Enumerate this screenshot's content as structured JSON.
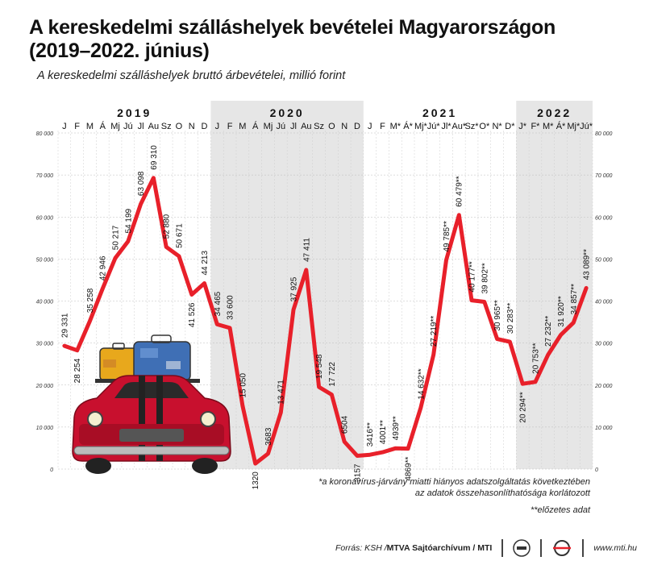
{
  "title": "A kereskedelmi szálláshelyek bevételei Magyarországon (2019–2022. június)",
  "subtitle": "A kereskedelmi szálláshelyek bruttó árbevételei, millió forint",
  "years": [
    "2019",
    "2020",
    "2021",
    "2022"
  ],
  "y_ticks": [
    "0",
    "10 000",
    "20 000",
    "30 000",
    "40 000",
    "50 000",
    "60 000",
    "70 000",
    "80 000"
  ],
  "notes": {
    "note1_line1": "*a koronavírus-járvány miatti hiányos adatszolgáltatás következtében",
    "note1_line2": "az adatok összehasonlíthatósága korlátozott",
    "note2": "**előzetes adat"
  },
  "footer": {
    "source_prefix": "Forrás: KSH / ",
    "source_bold": "MTVA Sajtóarchívum / MTI",
    "website": "www.mti.hu",
    "logo1": "MTVA logo",
    "logo2": "MTI logo"
  },
  "colors": {
    "line": "#e8202a",
    "shade": "#e6e6e6",
    "car": "#c8102e"
  },
  "icons": [
    "car-with-luggage-illustration"
  ],
  "chart_data": {
    "type": "line",
    "title": "A kereskedelmi szálláshelyek bevételei Magyarországon (2019–2022. június)",
    "ylabel": "",
    "ylim": [
      0,
      80000
    ],
    "grid": true,
    "categories": [
      "J",
      "F",
      "M",
      "Á",
      "Mj",
      "Jú",
      "Jl",
      "Au",
      "Sz",
      "O",
      "N",
      "D",
      "J",
      "F",
      "M",
      "Á",
      "Mj",
      "Jú",
      "Jl",
      "Au",
      "Sz",
      "O",
      "N",
      "D",
      "J",
      "F",
      "M*",
      "Á*",
      "Mj*",
      "Jú*",
      "Jl*",
      "Au*",
      "Sz*",
      "O*",
      "N*",
      "D*",
      "J*",
      "F*",
      "M*",
      "Á*",
      "Mj*",
      "Jú*"
    ],
    "values": [
      29331,
      28254,
      35258,
      42946,
      50217,
      54199,
      63098,
      69310,
      52880,
      50671,
      41526,
      44213,
      34465,
      33600,
      15050,
      1320,
      3683,
      13471,
      37925,
      47411,
      19548,
      17722,
      6504,
      3157,
      3416,
      4001,
      4939,
      4869,
      14632,
      27219,
      49785,
      60479,
      40177,
      39802,
      30965,
      30283,
      20294,
      20753,
      27232,
      31920,
      34857,
      43089
    ],
    "labels": [
      "29 331",
      "28 254",
      "35 258",
      "42 946",
      "50 217",
      "54 199",
      "63 098",
      "69 310",
      "52 880",
      "50 671",
      "41 526",
      "44 213",
      "34 465",
      "33 600",
      "15 050",
      "1320",
      "3683",
      "13 471",
      "37 925",
      "47 411",
      "19 548",
      "17 722",
      "6504",
      "3157",
      "3416**",
      "4001**",
      "4939**",
      "4869**",
      "14 632**",
      "27 219**",
      "49 785**",
      "60 479**",
      "40 177**",
      "39 802**",
      "30 965**",
      "30 283**",
      "20 294**",
      "20 753**",
      "27 232**",
      "31 920**",
      "34 857**",
      "43 089**"
    ]
  }
}
